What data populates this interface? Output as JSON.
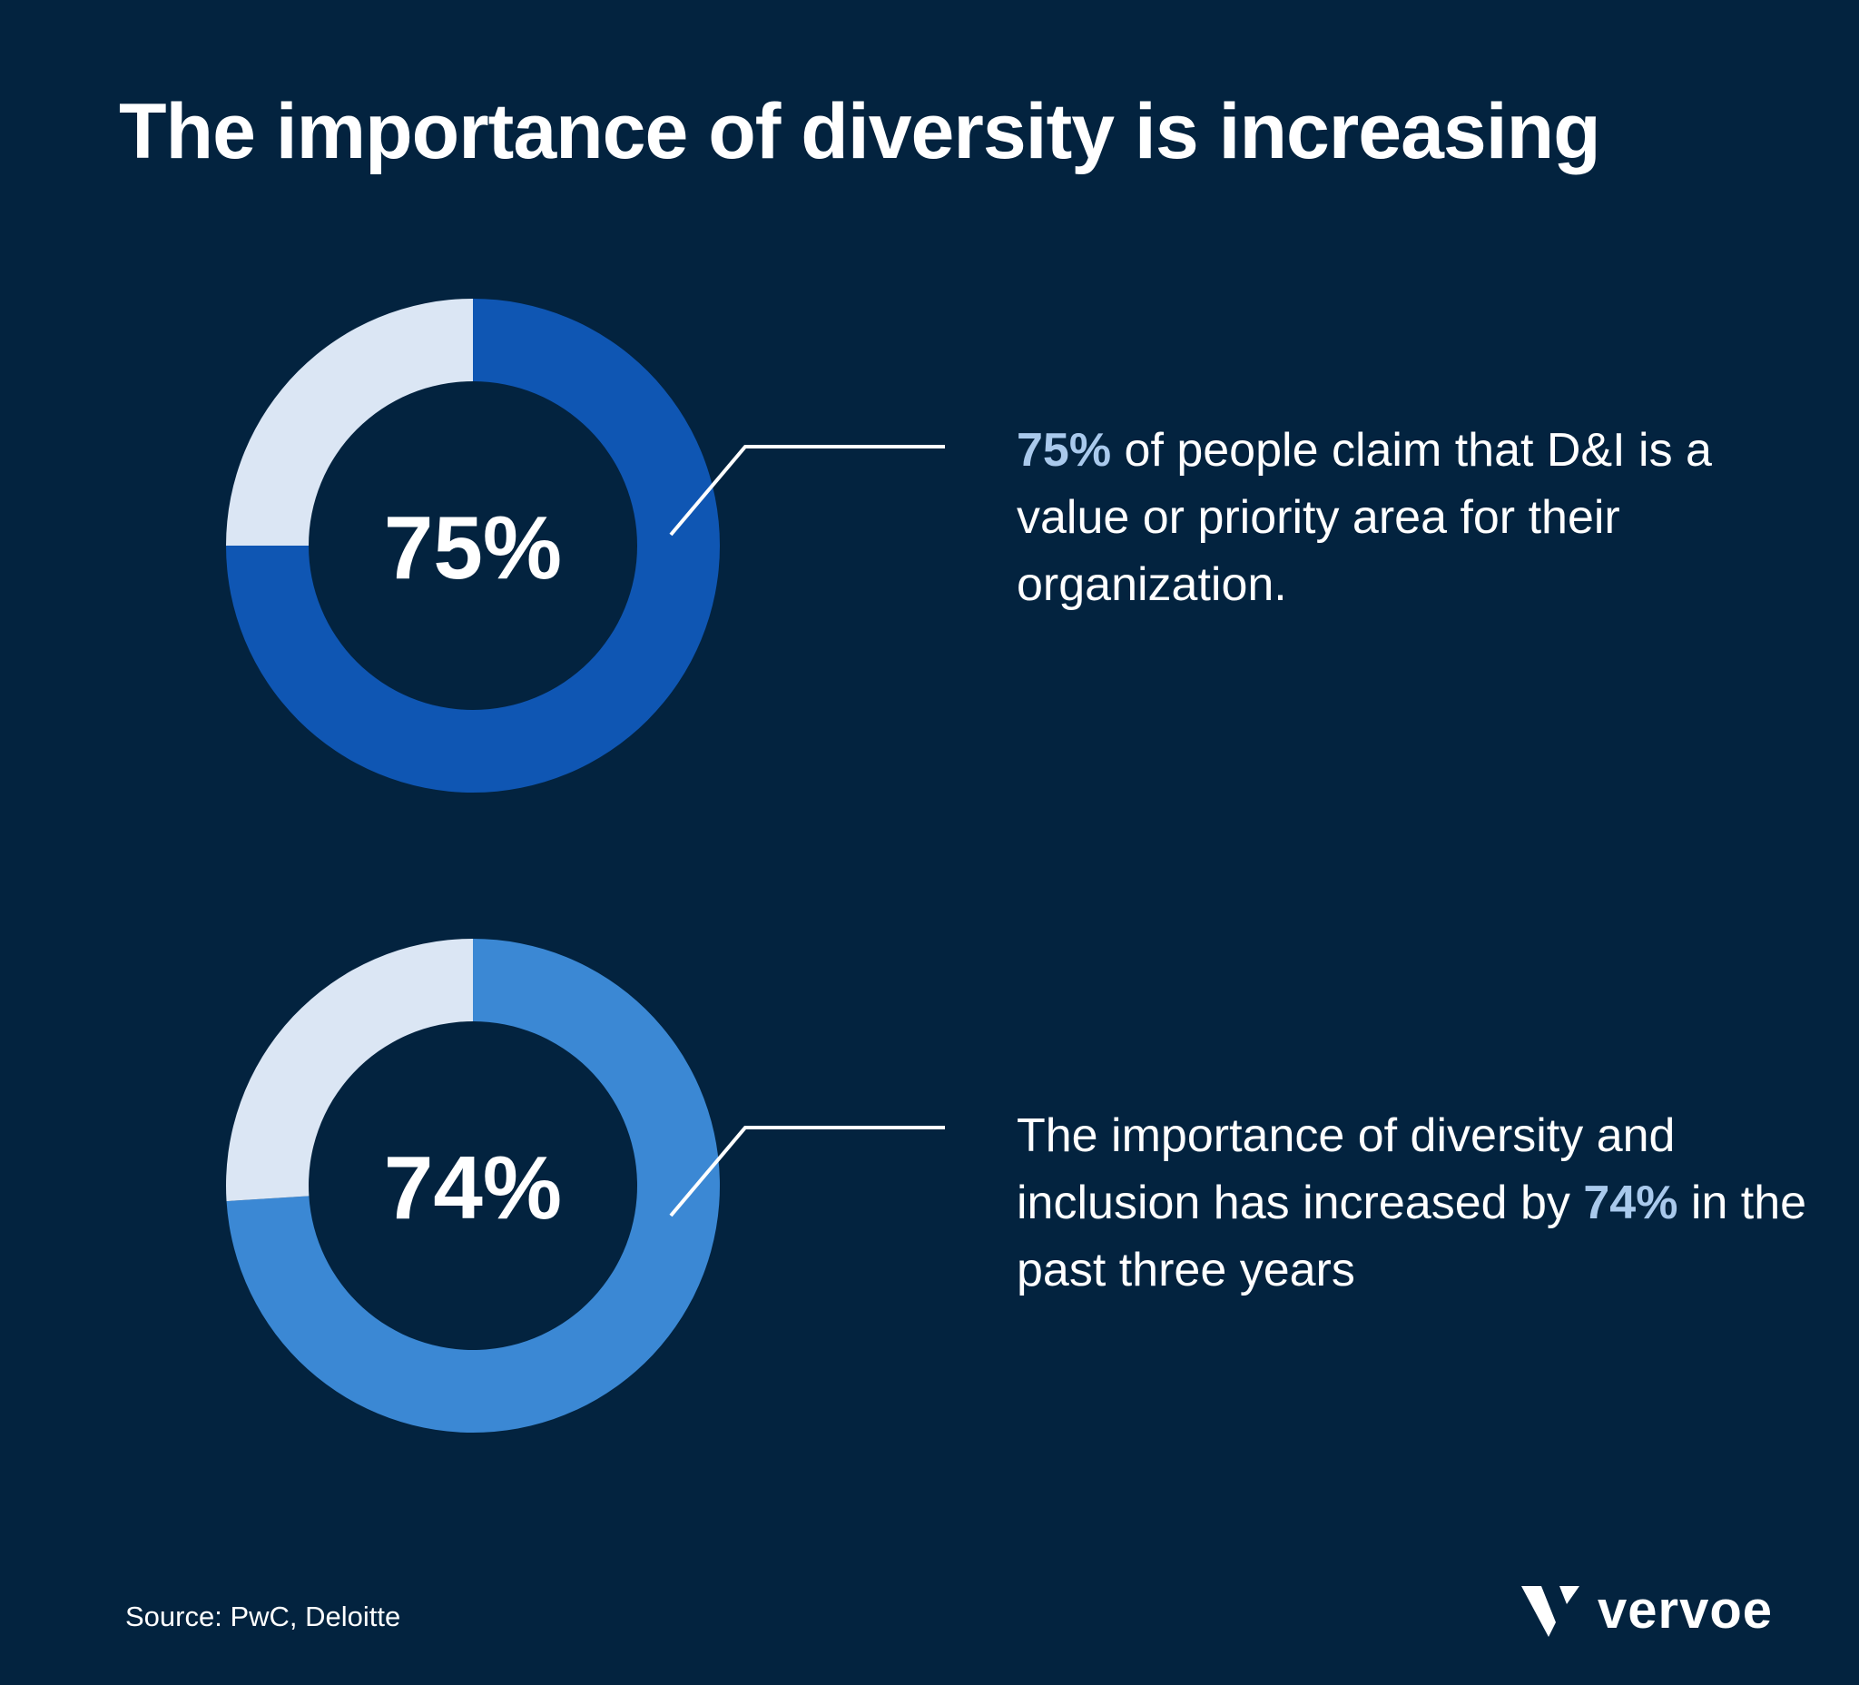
{
  "title": "The importance of diversity is increasing",
  "chart_data": [
    {
      "type": "pie",
      "variant": "donut",
      "values": [
        75,
        25
      ],
      "center_label": "75%",
      "colors": [
        "#0f56b3",
        "#dbe6f4"
      ]
    },
    {
      "type": "pie",
      "variant": "donut",
      "values": [
        74,
        26
      ],
      "center_label": "74%",
      "colors": [
        "#3b88d4",
        "#dbe6f4"
      ]
    }
  ],
  "stats": [
    {
      "highlight": "75%",
      "text_after": " of people claim that D&I is a value or priority area for their organization.",
      "text_before": ""
    },
    {
      "text_before": "The importance of diversity and inclusion has increased by ",
      "highlight": "74%",
      "text_after": " in the past three years"
    }
  ],
  "colors": {
    "background": "#03233f",
    "highlight": "#a9c9ec"
  },
  "source": "Source: PwC, Deloitte",
  "logo": {
    "text": "vervoe"
  }
}
